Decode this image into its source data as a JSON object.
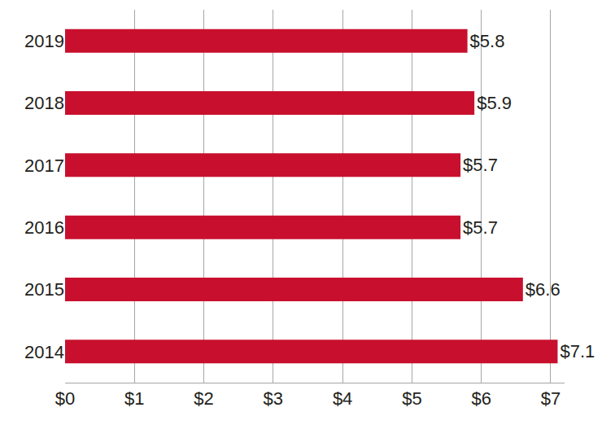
{
  "chart_data": {
    "type": "bar",
    "orientation": "horizontal",
    "categories": [
      "2019",
      "2018",
      "2017",
      "2016",
      "2015",
      "2014"
    ],
    "values": [
      5.8,
      5.9,
      5.7,
      5.7,
      6.6,
      7.1
    ],
    "value_labels": [
      "$5.8",
      "$5.9",
      "$5.7",
      "$5.7",
      "$6.6",
      "$7.1"
    ],
    "data_labels": true,
    "color": "#c8102e",
    "xlim": [
      0,
      7.2
    ],
    "xticks": [
      {
        "value": 0,
        "label": "$0"
      },
      {
        "value": 1,
        "label": "$1"
      },
      {
        "value": 2,
        "label": "$2"
      },
      {
        "value": 3,
        "label": "$3"
      },
      {
        "value": 4,
        "label": "$4"
      },
      {
        "value": 5,
        "label": "$5"
      },
      {
        "value": 6,
        "label": "$6"
      },
      {
        "value": 7,
        "label": "$7"
      }
    ],
    "grid": true
  }
}
